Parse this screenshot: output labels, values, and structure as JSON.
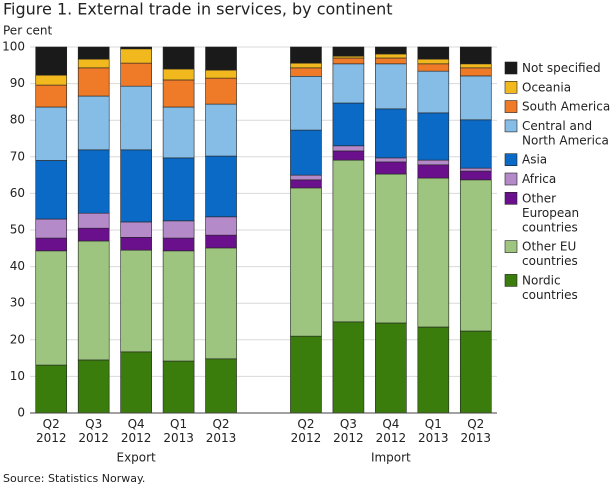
{
  "chart_data": {
    "type": "stacked_bar",
    "title": "Figure 1. External trade in services, by continent",
    "y_label": "Per cent",
    "source": "Source: Statistics Norway.",
    "categories": [
      "Q2 2012",
      "Q3 2012",
      "Q4 2012",
      "Q1 2013",
      "Q2 2013",
      null,
      "Q2 2012",
      "Q3 2012",
      "Q4 2012",
      "Q1 2013",
      "Q2 2013"
    ],
    "groups": [
      "Export",
      "Import"
    ],
    "ylim": [
      0,
      100
    ],
    "yticks": [
      0,
      10,
      20,
      30,
      40,
      50,
      60,
      70,
      80,
      90,
      100
    ],
    "grid": true,
    "legend": "right",
    "series": [
      {
        "name": "Nordic countries",
        "color": "#3b7d0d",
        "values": [
          13.1,
          14.5,
          16.7,
          14.2,
          14.8,
          null,
          21,
          24.9,
          24.6,
          23.5,
          22.4
        ]
      },
      {
        "name": "Other EU countries",
        "color": "#9dc57f",
        "values": [
          31.2,
          32.5,
          27.8,
          30.1,
          30.3,
          null,
          40.5,
          44.2,
          40.7,
          40.7,
          41.3
        ]
      },
      {
        "name": "Other European countries",
        "color": "#6b108d",
        "values": [
          3.5,
          3.5,
          3.5,
          3.5,
          3.5,
          null,
          2.2,
          2.5,
          3.3,
          3.6,
          2.4
        ]
      },
      {
        "name": "Africa",
        "color": "#b48ac9",
        "values": [
          5.2,
          4.1,
          4.2,
          4.7,
          5,
          null,
          1.3,
          1.4,
          1.1,
          1.3,
          0.8
        ]
      },
      {
        "name": "Asia",
        "color": "#0b6ac6",
        "values": [
          16,
          17.3,
          19.7,
          17.2,
          16.6,
          null,
          12.3,
          11.7,
          13.4,
          12.9,
          13.2
        ]
      },
      {
        "name": "Central and North America",
        "color": "#86bde7",
        "values": [
          14.6,
          14.7,
          17.4,
          13.9,
          14.2,
          null,
          14.7,
          10.7,
          12.3,
          11.4,
          12
        ]
      },
      {
        "name": "South America",
        "color": "#ef7b28",
        "values": [
          6,
          7.7,
          6.3,
          7.4,
          7.1,
          null,
          2.3,
          1.6,
          1.6,
          2,
          2.2
        ]
      },
      {
        "name": "Oceania",
        "color": "#f1b91d",
        "values": [
          2.7,
          2.4,
          3.9,
          3,
          2.2,
          null,
          1.3,
          0.5,
          1.1,
          1.3,
          1.1
        ]
      },
      {
        "name": "Not specified",
        "color": "#1a1a1a",
        "values": [
          7.7,
          3.3,
          0.5,
          6,
          6.3,
          null,
          4.4,
          2.5,
          1.9,
          3.3,
          4.6
        ]
      }
    ]
  }
}
